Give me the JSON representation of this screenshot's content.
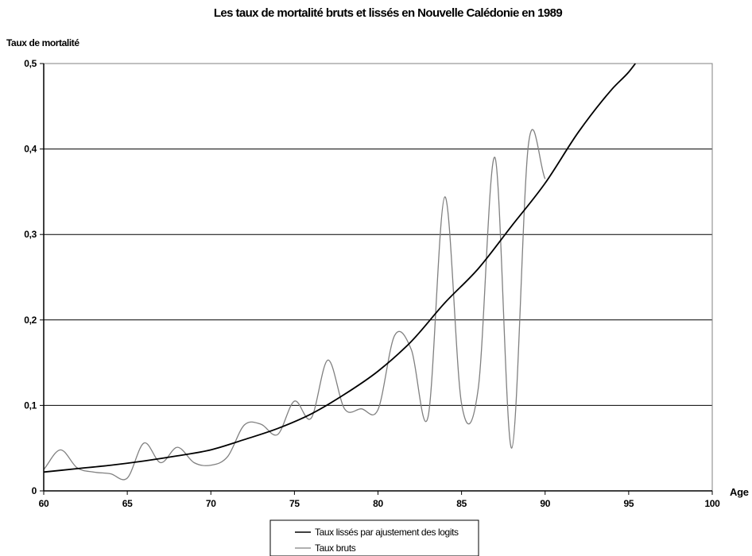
{
  "chart_data": {
    "type": "line",
    "title": "Les taux de mortalité bruts et lissés en Nouvelle Calédonie en 1989",
    "ylabel": "Taux de mortalité",
    "xlabel": "Age",
    "xlim": [
      60,
      100
    ],
    "ylim": [
      0,
      0.5
    ],
    "x_ticks": [
      60,
      65,
      70,
      75,
      80,
      85,
      90,
      95,
      100
    ],
    "x_tick_labels": [
      "60",
      "65",
      "70",
      "75",
      "80",
      "85",
      "90",
      "95",
      "100"
    ],
    "y_ticks": [
      0,
      0.1,
      0.2,
      0.3,
      0.4,
      0.5
    ],
    "y_tick_labels": [
      "0",
      "0,1",
      "0,2",
      "0,3",
      "0,4",
      "0,5"
    ],
    "grid": "horizontal",
    "legend_position": "bottom-center",
    "series": [
      {
        "name": "Taux lissés par ajustement des logits",
        "color": "#000000",
        "x": [
          60,
          62,
          64,
          66,
          68,
          70,
          72,
          74,
          76,
          78,
          80,
          82,
          84,
          86,
          88,
          90,
          92,
          94,
          95,
          95.4
        ],
        "y": [
          0.022,
          0.026,
          0.03,
          0.035,
          0.041,
          0.048,
          0.06,
          0.073,
          0.09,
          0.113,
          0.14,
          0.175,
          0.22,
          0.26,
          0.31,
          0.36,
          0.42,
          0.47,
          0.49,
          0.5
        ]
      },
      {
        "name": "Taux bruts",
        "color": "#808080",
        "x": [
          60,
          61,
          62,
          63,
          64,
          65,
          66,
          67,
          68,
          69,
          70,
          71,
          72,
          73,
          74,
          75,
          76,
          77,
          78,
          79,
          80,
          81,
          82,
          83,
          84,
          85,
          86,
          87,
          88,
          89,
          90
        ],
        "y": [
          0.025,
          0.048,
          0.027,
          0.022,
          0.02,
          0.015,
          0.056,
          0.033,
          0.051,
          0.033,
          0.03,
          0.04,
          0.077,
          0.078,
          0.066,
          0.105,
          0.085,
          0.153,
          0.096,
          0.096,
          0.095,
          0.182,
          0.165,
          0.087,
          0.344,
          0.102,
          0.12,
          0.39,
          0.05,
          0.405,
          0.365
        ]
      }
    ]
  }
}
